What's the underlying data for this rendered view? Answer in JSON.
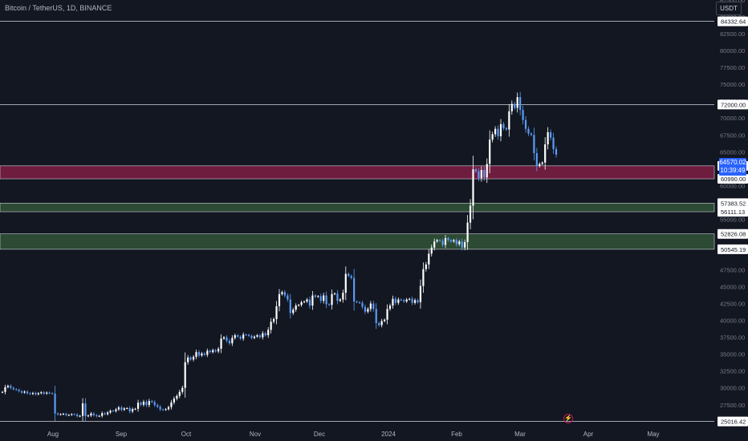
{
  "header": {
    "pair": "Bitcoin / TetherUS, 1D, BINANCE",
    "currency": "USDT"
  },
  "live_price": {
    "value": "64570.02",
    "countdown": "10:39:49"
  },
  "colors": {
    "background": "#131722",
    "up_candle": "#ffffff",
    "down_candle": "#5b9cf6",
    "resistance_zone": "#6e1d3f",
    "support_zone": "#2c4a34",
    "horizontal_line": "#d1d4dc",
    "axis_text": "#b2b5be",
    "live_label": "#2962ff"
  },
  "chart_data": {
    "type": "candlestick",
    "symbol": "BTCUSDT",
    "interval": "1D",
    "exchange": "BINANCE",
    "ylim": [
      24500,
      87500
    ],
    "y_ticks": [
      "87500.00",
      "85000.00",
      "82500.00",
      "80000.00",
      "77500.00",
      "75000.00",
      "72500.00",
      "70000.00",
      "67500.00",
      "65000.00",
      "62500.00",
      "60000.00",
      "55000.00",
      "47500.00",
      "45000.00",
      "42500.00",
      "40000.00",
      "37500.00",
      "35000.00",
      "32500.00",
      "30000.00",
      "27500.00"
    ],
    "x_ticks": [
      "Aug",
      "Sep",
      "Oct",
      "Nov",
      "Dec",
      "2024",
      "Feb",
      "Mar",
      "Apr",
      "May"
    ],
    "horizontal_levels": [
      {
        "value": 84332.64,
        "label": "84332.64"
      },
      {
        "value": 72000.0,
        "label": "72000.00"
      },
      {
        "value": 25016.42,
        "label": "25016.42"
      }
    ],
    "zones": [
      {
        "kind": "resistance",
        "top": 62915.0,
        "bottom": 60990.0,
        "top_label": "62915.00",
        "bottom_label": "60990.00"
      },
      {
        "kind": "support",
        "top": 57383.52,
        "bottom": 56111.13,
        "top_label": "57383.52",
        "bottom_label": "56111.13"
      },
      {
        "kind": "support",
        "top": 52826.08,
        "bottom": 50545.19,
        "top_label": "52826.08",
        "bottom_label": "50545.19"
      }
    ],
    "closes": [
      29400,
      30100,
      30300,
      30000,
      29800,
      29700,
      29500,
      29300,
      29450,
      29200,
      29100,
      29250,
      29050,
      29200,
      29350,
      29150,
      29300,
      29200,
      29150,
      26200,
      26050,
      26100,
      26150,
      25950,
      26000,
      26100,
      26050,
      25800,
      25850,
      27700,
      25800,
      25900,
      26200,
      25950,
      25800,
      25850,
      26250,
      26100,
      26350,
      26600,
      26550,
      26800,
      27100,
      26750,
      26950,
      27000,
      26500,
      26850,
      26900,
      27800,
      27500,
      27950,
      27450,
      28050,
      27900,
      27450,
      27200,
      26800,
      26750,
      26850,
      27150,
      27850,
      28400,
      28800,
      29400,
      30000,
      33800,
      34500,
      34200,
      34600,
      35300,
      34800,
      35100,
      34900,
      35500,
      35300,
      35600,
      35400,
      35800,
      37300,
      37500,
      37000,
      36600,
      37400,
      37800,
      37600,
      37300,
      37900,
      37850,
      37700,
      37400,
      37600,
      37800,
      37500,
      38100,
      37800,
      38600,
      39800,
      40200,
      42100,
      43900,
      44200,
      43700,
      43100,
      41100,
      41600,
      42200,
      42300,
      42700,
      42800,
      43100,
      42200,
      43700,
      43500,
      43600,
      42900,
      43700,
      42400,
      42300,
      43900,
      44000,
      42900,
      43100,
      44100,
      46900,
      46600,
      46300,
      42800,
      42700,
      42600,
      42000,
      41300,
      41700,
      42500,
      41700,
      39600,
      39300,
      39900,
      40100,
      41700,
      42200,
      43200,
      42600,
      43100,
      43000,
      42800,
      43100,
      43200,
      42600,
      43000,
      42700,
      45100,
      47600,
      48300,
      49900,
      50800,
      51700,
      51900,
      51800,
      51200,
      52200,
      51900,
      51700,
      51900,
      51300,
      51700,
      50800,
      51600,
      54500,
      57000,
      62400,
      62100,
      61100,
      62300,
      61200,
      63200,
      66800,
      67600,
      68400,
      67300,
      69100,
      68500,
      68300,
      71000,
      72100,
      71500,
      73100,
      71200,
      69700,
      68400,
      67700,
      67500,
      64800,
      62900,
      63200,
      63400,
      66100,
      67900,
      67100,
      65400,
      64570
    ]
  }
}
